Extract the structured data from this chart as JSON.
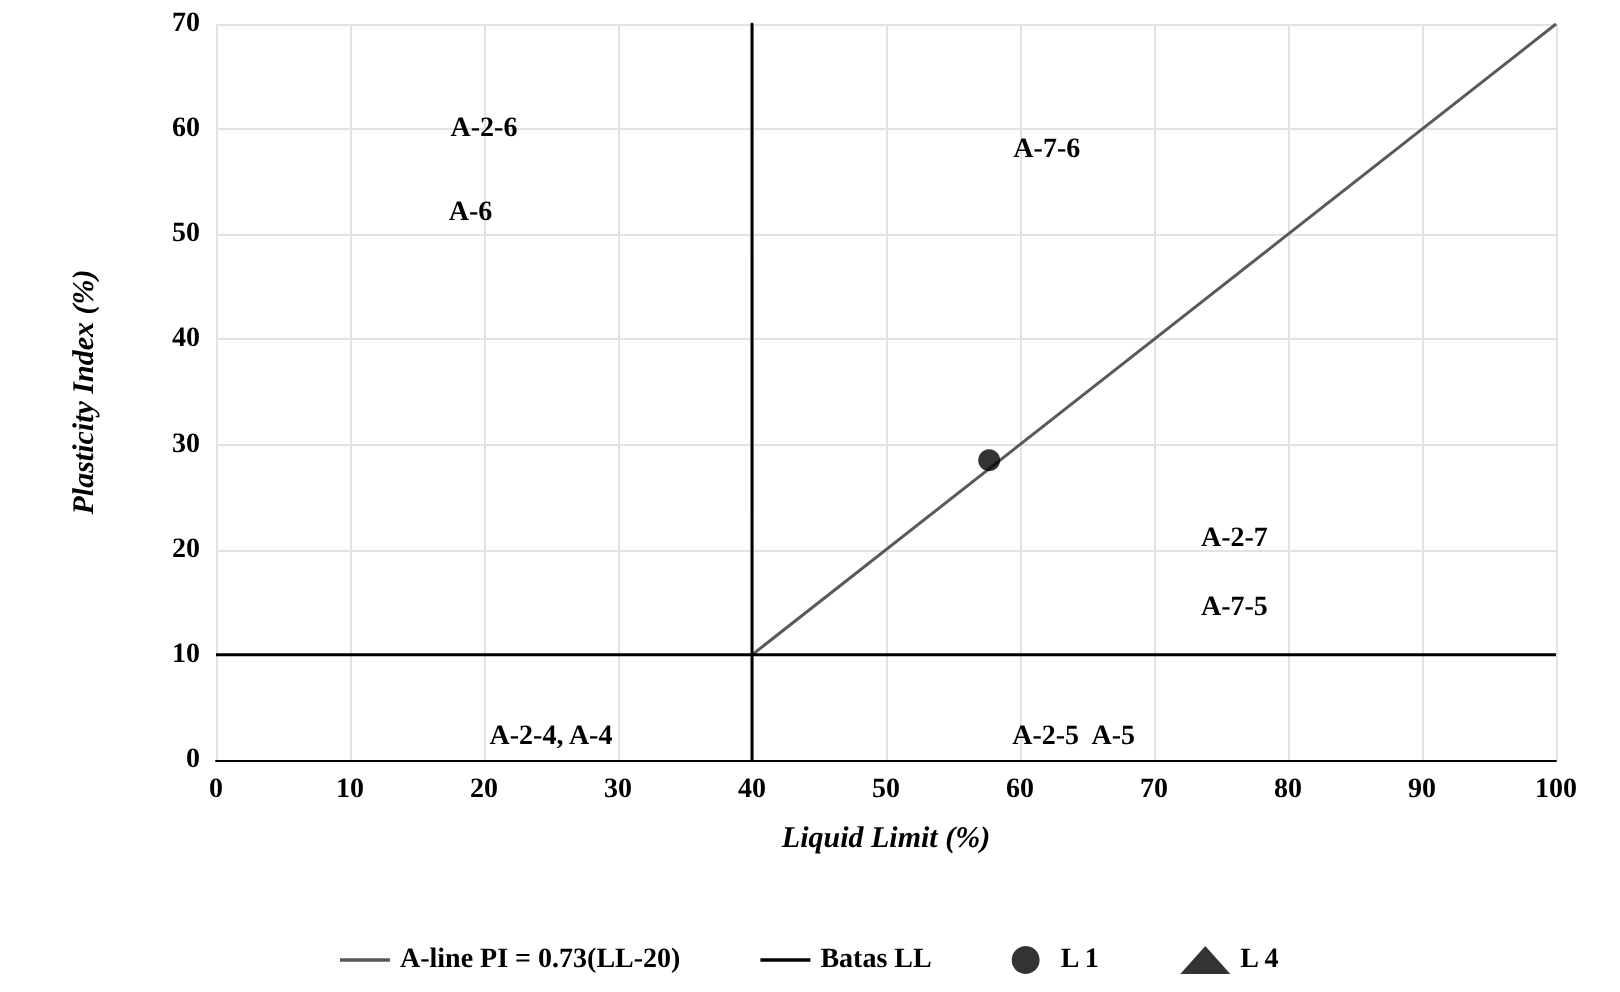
{
  "chart_data": {
    "type": "scatter",
    "xlabel": "Liquid Limit (%)",
    "ylabel": "Plasticity Index (%)",
    "xlim": [
      0,
      100
    ],
    "xticks": [
      0,
      10,
      20,
      30,
      40,
      50,
      60,
      70,
      80,
      90,
      100
    ],
    "ylim": [
      0,
      70
    ],
    "yticks": [
      0,
      10,
      20,
      30,
      40,
      50,
      60,
      70
    ],
    "grid": true,
    "legend": "bottom",
    "series": [
      {
        "name": "A-line PI = 0.73(LL-20)",
        "type": "line",
        "color": "#595959",
        "x": [
          40,
          100
        ],
        "values": [
          10,
          70
        ],
        "marker": "none",
        "line_style": "solid"
      },
      {
        "name": "Batas LL",
        "type": "line",
        "color": "#000000",
        "x": [
          0,
          40,
          40,
          40,
          40,
          100
        ],
        "values": [
          10,
          10,
          0,
          70,
          10,
          10
        ],
        "marker": "none",
        "line_style": "solid"
      },
      {
        "name": "L 1",
        "type": "scatter",
        "color": "#000000",
        "x": [
          57.7
        ],
        "values": [
          28.5
        ],
        "marker": "circle"
      },
      {
        "name": "L 4",
        "type": "scatter",
        "color": "#000000",
        "values": [
          null
        ],
        "marker": "triangle"
      }
    ],
    "annotations": [
      "A-2-6",
      "A-6",
      "A-7-6",
      "A-2-7",
      "A-7-5",
      "A-2-4, A-4",
      "A-2-5  A-5"
    ]
  }
}
